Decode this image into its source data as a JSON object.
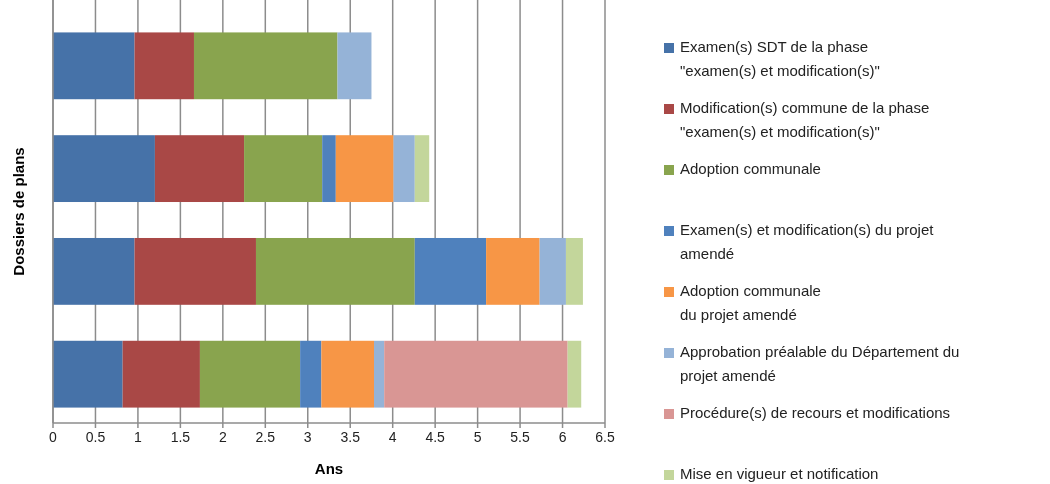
{
  "chart_data": {
    "type": "bar",
    "orientation": "horizontal",
    "stacked": true,
    "xlabel": "Ans",
    "ylabel": "Dossiers de plans",
    "categories": [
      null,
      null,
      null,
      null
    ],
    "xlim": [
      0,
      6.5
    ],
    "xticks": [
      0,
      {
        "value": 0.5,
        "label": "0.5"
      },
      1,
      {
        "value": 1.5,
        "label": "1.5"
      },
      2,
      {
        "value": 2.5,
        "label": "2.5"
      },
      3,
      {
        "value": 3.5,
        "label": "3.5"
      },
      4,
      {
        "value": 4.5,
        "label": "4.5"
      },
      5,
      {
        "value": 5.5,
        "label": "5.5"
      },
      6,
      {
        "value": 6.5,
        "label": "6.5"
      }
    ],
    "grid": "x",
    "legend": "right",
    "series": [
      {
        "name": "Examen(s) SDT de la phase\n\"examen(s) et modification(s)\"",
        "color": "#4672a8",
        "values": [
          0.96,
          1.2,
          0.96,
          0.82
        ]
      },
      {
        "name": "Modification(s) commune de la phase\n\"examen(s) et modification(s)\"",
        "color": "#a94846",
        "values": [
          0.7,
          1.05,
          1.43,
          0.91
        ]
      },
      {
        "name": "Adoption communale",
        "color": "#89a44e",
        "values": [
          1.69,
          0.92,
          1.87,
          1.18
        ]
      },
      {
        "name": "Examen(s) et modification(s) du projet\namendé",
        "color": "#4f81bd",
        "values": [
          null,
          0.16,
          0.84,
          0.25
        ]
      },
      {
        "name": "Adoption communale\ndu projet amendé",
        "color": "#f79646",
        "values": [
          null,
          0.68,
          0.63,
          0.62
        ]
      },
      {
        "name": "Approbation préalable du Département du\nprojet amendé",
        "color": "#95b3d7",
        "values": [
          0.4,
          0.25,
          0.31,
          0.12
        ]
      },
      {
        "name": "Procédure(s) de recours et modifications",
        "color": "#d99694",
        "values": [
          null,
          null,
          null,
          2.16
        ]
      },
      {
        "name": "Mise en vigueur et notification",
        "color": "#c3d69b",
        "values": [
          null,
          0.17,
          0.2,
          0.16
        ]
      }
    ]
  }
}
